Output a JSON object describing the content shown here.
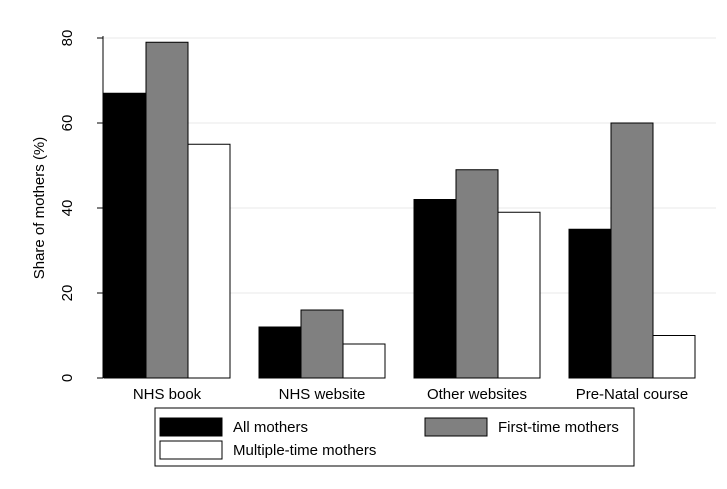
{
  "chart_data": {
    "type": "bar",
    "y_label": "Share of mothers (%)",
    "categories": [
      "NHS book",
      "NHS website",
      "Other websites",
      "Pre-Natal course"
    ],
    "series": [
      {
        "name": "All mothers",
        "color": "#000000",
        "values": [
          67,
          12,
          42,
          35
        ]
      },
      {
        "name": "First-time mothers",
        "color": "#808080",
        "values": [
          79,
          16,
          49,
          60
        ]
      },
      {
        "name": "Multiple-time mothers",
        "color": "#ffffff",
        "values": [
          55,
          8,
          39,
          10
        ]
      }
    ],
    "ylim": [
      0,
      80
    ],
    "yticks": [
      0,
      20,
      40,
      60,
      80
    ],
    "grid": true
  }
}
